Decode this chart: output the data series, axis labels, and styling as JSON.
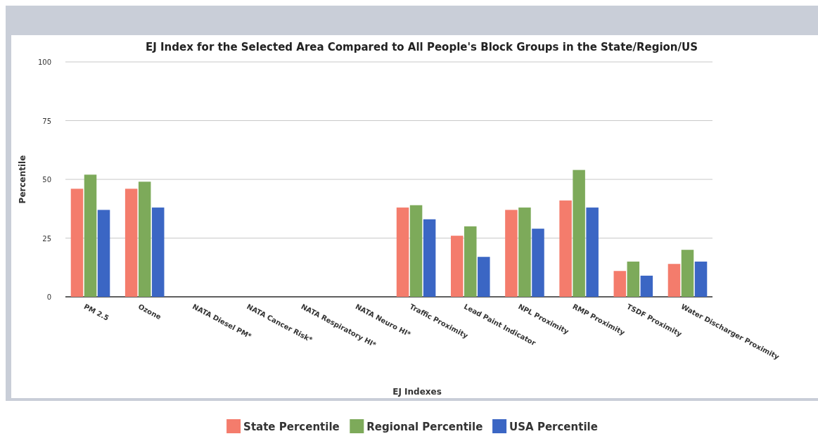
{
  "chart_data": {
    "type": "bar",
    "title": "EJ Index for the Selected Area Compared to All People's Block Groups in the State/Region/US",
    "xlabel": "EJ Indexes",
    "ylabel": "Percentile",
    "categories": [
      "PM 2.5",
      "Ozone",
      "NATA Diesel PM*",
      "NATA Cancer Risk*",
      "NATA Respiratory HI*",
      "NATA Neuro HI*",
      "Traffic Proximity",
      "Lead Paint Indicator",
      "NPL Proximity",
      "RMP Proximity",
      "TSDF Proximity",
      "Water Discharger Proximity"
    ],
    "series": [
      {
        "name": "State Percentile",
        "color": "#f47c6c",
        "values": [
          46,
          46,
          null,
          null,
          null,
          null,
          38,
          26,
          37,
          41,
          11,
          14
        ]
      },
      {
        "name": "Regional Percentile",
        "color": "#7daa5a",
        "values": [
          52,
          49,
          null,
          null,
          null,
          null,
          39,
          30,
          38,
          54,
          15,
          20
        ]
      },
      {
        "name": "USA Percentile",
        "color": "#3b66c4",
        "values": [
          37,
          38,
          null,
          null,
          null,
          null,
          33,
          17,
          29,
          38,
          9,
          15
        ]
      }
    ],
    "ylim": [
      0,
      100
    ],
    "yticks": [
      0,
      25,
      50,
      75,
      100
    ],
    "grid": "y",
    "legend": "bottom"
  }
}
